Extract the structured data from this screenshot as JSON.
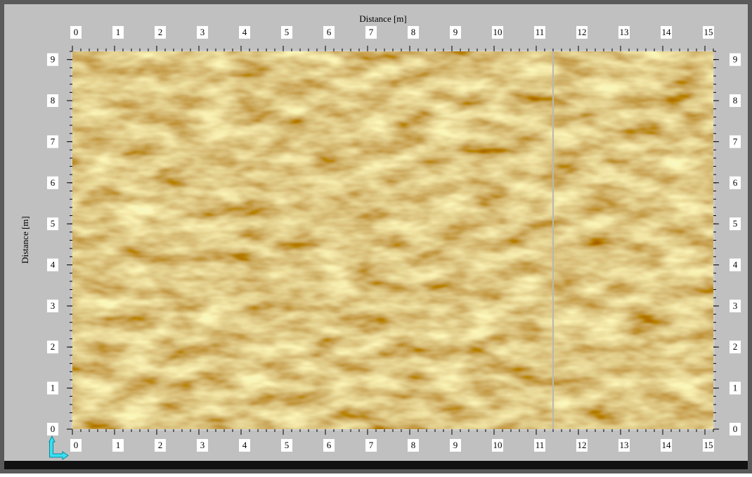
{
  "chart_data": {
    "type": "heatmap",
    "x_label": "Distance [m]",
    "y_label": "Distance [m]",
    "xlim": [
      0,
      15.2
    ],
    "ylim": [
      0,
      9.2
    ],
    "xticks": [
      0,
      1,
      2,
      3,
      4,
      5,
      6,
      7,
      8,
      9,
      10,
      11,
      12,
      13,
      14,
      15
    ],
    "yticks": [
      0,
      1,
      2,
      3,
      4,
      5,
      6,
      7,
      8,
      9
    ],
    "minor_step": 0.2,
    "vline_x": 11.4,
    "colors": {
      "low": "#96601a",
      "high": "#f0dc6e"
    }
  }
}
